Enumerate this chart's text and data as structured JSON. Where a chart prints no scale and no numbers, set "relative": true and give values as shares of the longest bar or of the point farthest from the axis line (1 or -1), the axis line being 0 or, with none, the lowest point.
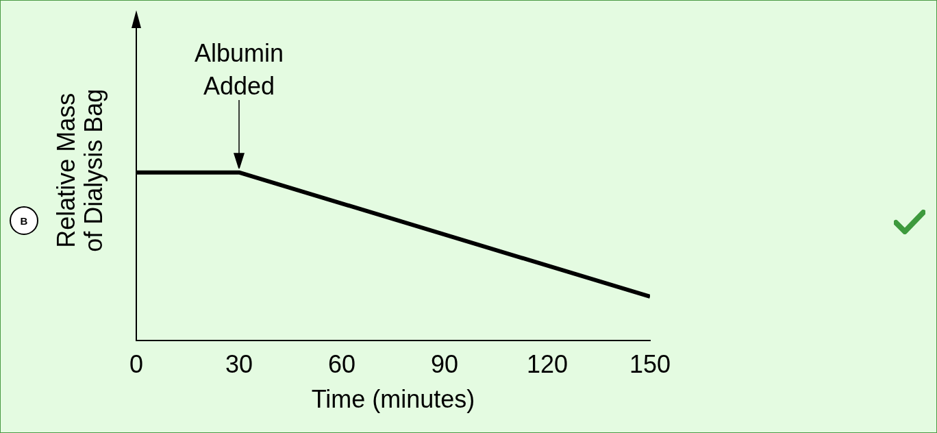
{
  "chart_data": {
    "type": "line",
    "relative": true,
    "x": [
      0,
      30,
      150
    ],
    "series": [
      {
        "color": "#000000",
        "values": [
          1,
          1,
          0.26
        ]
      }
    ],
    "xlabel": "Time (minutes)",
    "ylabel": "Relative Mass\nof Dialysis Bag",
    "xlim": [
      0,
      150
    ],
    "xticks": [
      0,
      30,
      60,
      90,
      120,
      150
    ],
    "grid": false,
    "legend": false,
    "marker": "none",
    "line_style": "solid",
    "annotations": [
      {
        "text": "Albumin\nAdded",
        "x": 30,
        "y": 1
      },
      "B"
    ]
  }
}
